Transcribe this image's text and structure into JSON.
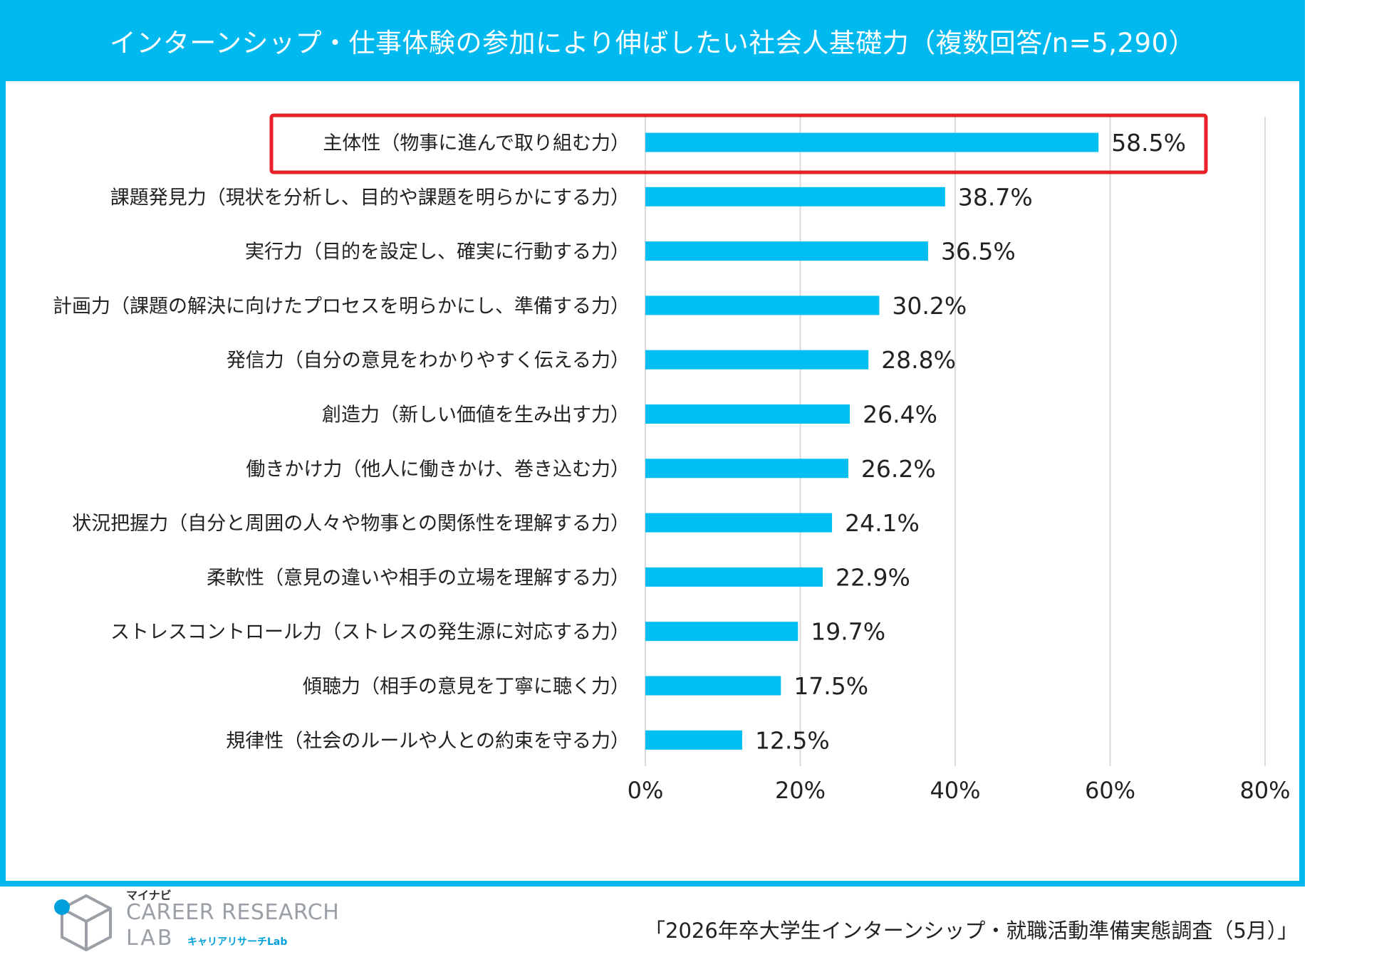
{
  "colors": {
    "frame": "#00b9ef",
    "bar": "#00bdf2",
    "highlight": "#e8202a",
    "grid": "#d9d9d9",
    "text": "#222222"
  },
  "chart_data": {
    "type": "bar",
    "orientation": "horizontal",
    "title": "インターンシップ・仕事体験の参加により伸ばしたい社会人基礎力（複数回答/n=5,290）",
    "categories": [
      "主体性（物事に進んで取り組む力）",
      "課題発見力（現状を分析し、目的や課題を明らかにする力）",
      "実行力（目的を設定し、確実に行動する力）",
      "計画力（課題の解決に向けたプロセスを明らかにし、準備する力）",
      "発信力（自分の意見をわかりやすく伝える力）",
      "創造力（新しい価値を生み出す力）",
      "働きかけ力（他人に働きかけ、巻き込む力）",
      "状況把握力（自分と周囲の人々や物事との関係性を理解する力）",
      "柔軟性（意見の違いや相手の立場を理解する力）",
      "ストレスコントロール力（ストレスの発生源に対応する力）",
      "傾聴力（相手の意見を丁寧に聴く力）",
      "規律性（社会のルールや人との約束を守る力）"
    ],
    "values": [
      58.5,
      38.7,
      36.5,
      30.2,
      28.8,
      26.4,
      26.2,
      24.1,
      22.9,
      19.7,
      17.5,
      12.5
    ],
    "value_labels": [
      "58.5%",
      "38.7%",
      "36.5%",
      "30.2%",
      "28.8%",
      "26.4%",
      "26.2%",
      "24.1%",
      "22.9%",
      "19.7%",
      "17.5%",
      "12.5%"
    ],
    "xlim": [
      0,
      80
    ],
    "xticks": [
      0,
      20,
      40,
      60,
      80
    ],
    "xtick_labels": [
      "0%",
      "20%",
      "40%",
      "60%",
      "80%"
    ],
    "grid": true,
    "highlight_index": 0
  },
  "source": "「2026年卒大学生インターンシップ・就職活動準備実態調査（5月）」",
  "logo": {
    "brand": "マイナビ",
    "line1": "CAREER RESEARCH",
    "line2": "LAB",
    "sub": "キャリアリサーチLab"
  }
}
